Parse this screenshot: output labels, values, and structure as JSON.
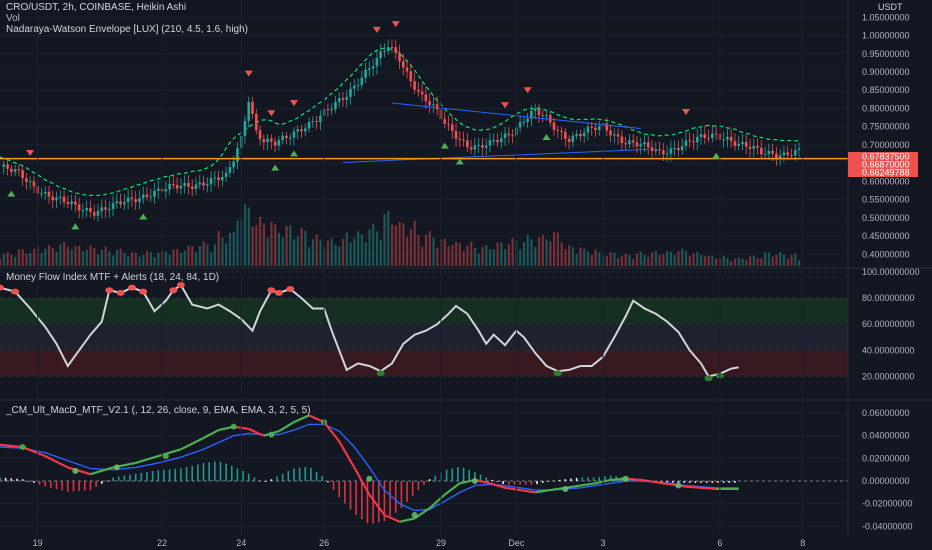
{
  "header": {
    "symbol_line": "CRO/USDT, 2h, COINBASE, Heikin Ashi",
    "vol_label": "Vol",
    "indicator1": "Nadaraya-Watson Envelope [LUX] (210, 4.5, 1.6, high)",
    "currency": "USDT"
  },
  "panels": {
    "mfi_title": "Money Flow Index MTF + Alerts (18, 24, 84, 1D)",
    "macd_title": "_CM_Ult_MacD_MTF_V2.1 (, 12, 26, close, 9, EMA, EMA, 3, 2, 5, 5)"
  },
  "colors": {
    "background": "#131722",
    "up": "#26a69a",
    "down": "#ef5350",
    "envelope": "#00e676",
    "trendline": "#2962ff",
    "support": "#ff9800",
    "mfi_line": "#d1d4dc",
    "macd": "#2962ff",
    "signal_up": "#26a69a",
    "signal_down": "#f23645"
  },
  "chart_data": [
    {
      "type": "candlestick",
      "title": "CRO/USDT, 2h, COINBASE, Heikin Ashi",
      "x_ticks": [
        "19",
        "22",
        "24",
        "26",
        "29",
        "Dec",
        "3",
        "6",
        "8"
      ],
      "y_ticks": [
        "1.05000000",
        "1.00000000",
        "0.95000000",
        "0.90000000",
        "0.85000000",
        "0.80000000",
        "0.75000000",
        "0.70000000",
        "0.65000000",
        "0.60000000",
        "0.55000000",
        "0.50000000",
        "0.45000000",
        "0.40000000"
      ],
      "ylim": [
        0.39,
        1.07
      ],
      "price_labels": [
        {
          "text": "0.67837500",
          "color": "#ef5350"
        },
        {
          "text": "0.66870000",
          "color": "#ef5350"
        },
        {
          "text": "0.66249788",
          "color": "#ef5350"
        }
      ],
      "support_level": 0.6625,
      "close_path": [
        [
          0,
          0.64
        ],
        [
          5,
          0.62
        ],
        [
          10,
          0.58
        ],
        [
          15,
          0.55
        ],
        [
          20,
          0.53
        ],
        [
          25,
          0.52
        ],
        [
          30,
          0.53
        ],
        [
          35,
          0.55
        ],
        [
          40,
          0.57
        ],
        [
          45,
          0.58
        ],
        [
          50,
          0.59
        ],
        [
          55,
          0.6
        ],
        [
          60,
          0.61
        ],
        [
          62,
          0.66
        ],
        [
          64,
          0.72
        ],
        [
          66,
          0.83
        ],
        [
          68,
          0.74
        ],
        [
          70,
          0.71
        ],
        [
          73,
          0.7
        ],
        [
          76,
          0.72
        ],
        [
          80,
          0.75
        ],
        [
          84,
          0.77
        ],
        [
          88,
          0.8
        ],
        [
          92,
          0.84
        ],
        [
          96,
          0.89
        ],
        [
          100,
          0.93
        ],
        [
          103,
          0.97
        ],
        [
          106,
          0.94
        ],
        [
          109,
          0.88
        ],
        [
          112,
          0.83
        ],
        [
          115,
          0.8
        ],
        [
          118,
          0.76
        ],
        [
          121,
          0.73
        ],
        [
          124,
          0.7
        ],
        [
          127,
          0.69
        ],
        [
          130,
          0.7
        ],
        [
          133,
          0.72
        ],
        [
          136,
          0.74
        ],
        [
          139,
          0.77
        ],
        [
          142,
          0.79
        ],
        [
          145,
          0.77
        ],
        [
          148,
          0.74
        ],
        [
          151,
          0.72
        ],
        [
          154,
          0.73
        ],
        [
          157,
          0.74
        ],
        [
          160,
          0.75
        ],
        [
          163,
          0.73
        ],
        [
          166,
          0.71
        ],
        [
          169,
          0.7
        ],
        [
          172,
          0.69
        ],
        [
          175,
          0.68
        ],
        [
          178,
          0.69
        ],
        [
          181,
          0.7
        ],
        [
          184,
          0.71
        ],
        [
          187,
          0.72
        ],
        [
          190,
          0.73
        ],
        [
          193,
          0.72
        ],
        [
          196,
          0.7
        ],
        [
          199,
          0.69
        ],
        [
          202,
          0.68
        ],
        [
          205,
          0.68
        ],
        [
          208,
          0.675
        ],
        [
          211,
          0.678
        ]
      ],
      "volume_profile": [
        0.2,
        0.25,
        0.3,
        0.35,
        0.3,
        0.28,
        0.25,
        0.2,
        0.22,
        0.25,
        0.3,
        0.35,
        0.5,
        0.9,
        0.7,
        0.6,
        0.55,
        0.45,
        0.4,
        0.5,
        0.6,
        0.8,
        0.65,
        0.5,
        0.4,
        0.35,
        0.3,
        0.35,
        0.4,
        0.45,
        0.5,
        0.3,
        0.25,
        0.2,
        0.18,
        0.2,
        0.22,
        0.25,
        0.2,
        0.15,
        0.12,
        0.15,
        0.2,
        0.18,
        0.1
      ],
      "sell_markers_idx": [
        8,
        66,
        72,
        78,
        100,
        105,
        134,
        140,
        182
      ],
      "buy_markers_idx": [
        3,
        20,
        38,
        73,
        78,
        118,
        122,
        145,
        190
      ]
    },
    {
      "type": "line",
      "title": "Money Flow Index MTF + Alerts (18, 24, 84, 1D)",
      "y_ticks": [
        "100.00000000",
        "80.00000000",
        "60.00000000",
        "40.00000000",
        "20.00000000"
      ],
      "ylim": [
        5,
        100
      ],
      "bands": {
        "overbought": [
          60,
          80
        ],
        "oversold": [
          20,
          40
        ]
      },
      "series": [
        {
          "values": [
            [
              0,
              88
            ],
            [
              4,
              85
            ],
            [
              8,
              72
            ],
            [
              12,
              58
            ],
            [
              15,
              45
            ],
            [
              18,
              28
            ],
            [
              21,
              40
            ],
            [
              24,
              52
            ],
            [
              27,
              62
            ],
            [
              29,
              86
            ],
            [
              32,
              84
            ],
            [
              35,
              88
            ],
            [
              38,
              85
            ],
            [
              41,
              70
            ],
            [
              44,
              78
            ],
            [
              46,
              86
            ],
            [
              48,
              90
            ],
            [
              51,
              75
            ],
            [
              55,
              72
            ],
            [
              58,
              75
            ],
            [
              61,
              70
            ],
            [
              64,
              64
            ],
            [
              67,
              55
            ],
            [
              69,
              70
            ],
            [
              72,
              86
            ],
            [
              74,
              84
            ],
            [
              77,
              87
            ],
            [
              80,
              80
            ],
            [
              83,
              72
            ],
            [
              86,
              72
            ],
            [
              88,
              55
            ],
            [
              90,
              40
            ],
            [
              92,
              25
            ],
            [
              95,
              30
            ],
            [
              98,
              28
            ],
            [
              101,
              24
            ],
            [
              104,
              30
            ],
            [
              107,
              45
            ],
            [
              110,
              52
            ],
            [
              113,
              55
            ],
            [
              116,
              60
            ],
            [
              119,
              68
            ],
            [
              121,
              74
            ],
            [
              124,
              68
            ],
            [
              127,
              55
            ],
            [
              129,
              45
            ],
            [
              131,
              52
            ],
            [
              134,
              44
            ],
            [
              137,
              55
            ],
            [
              139,
              50
            ],
            [
              142,
              38
            ],
            [
              145,
              28
            ],
            [
              148,
              24
            ],
            [
              151,
              25
            ],
            [
              154,
              28
            ],
            [
              157,
              28
            ],
            [
              160,
              35
            ],
            [
              163,
              50
            ],
            [
              166,
              66
            ],
            [
              168,
              78
            ],
            [
              171,
              72
            ],
            [
              174,
              68
            ],
            [
              177,
              62
            ],
            [
              180,
              54
            ],
            [
              183,
              40
            ],
            [
              186,
              30
            ],
            [
              188,
              20
            ],
            [
              191,
              22
            ],
            [
              194,
              26
            ],
            [
              196,
              27
            ]
          ]
        }
      ]
    },
    {
      "type": "bar+line",
      "title": "_CM_Ult_MacD_MTF_V2.1 (, 12, 26, close, 9, EMA, EMA, 3, 2, 5, 5)",
      "y_ticks": [
        "0.06000000",
        "0.04000000",
        "0.02000000",
        "0.00000000",
        "-0.02000000",
        "-0.04000000"
      ],
      "ylim": [
        -0.045,
        0.068
      ],
      "series": [
        {
          "values": [
            [
              0,
              0.032
            ],
            [
              6,
              0.03
            ],
            [
              12,
              0.022
            ],
            [
              18,
              0.012
            ],
            [
              24,
              0.006
            ],
            [
              30,
              0.012
            ],
            [
              36,
              0.016
            ],
            [
              42,
              0.022
            ],
            [
              48,
              0.028
            ],
            [
              54,
              0.038
            ],
            [
              58,
              0.045
            ],
            [
              62,
              0.048
            ],
            [
              66,
              0.046
            ],
            [
              70,
              0.04
            ],
            [
              74,
              0.044
            ],
            [
              78,
              0.052
            ],
            [
              82,
              0.058
            ],
            [
              86,
              0.052
            ],
            [
              90,
              0.035
            ],
            [
              94,
              0.012
            ],
            [
              98,
              -0.012
            ],
            [
              102,
              -0.03
            ],
            [
              106,
              -0.036
            ],
            [
              110,
              -0.033
            ],
            [
              114,
              -0.024
            ],
            [
              118,
              -0.012
            ],
            [
              122,
              -0.002
            ],
            [
              126,
              0.001
            ],
            [
              130,
              -0.002
            ],
            [
              134,
              -0.006
            ],
            [
              138,
              -0.008
            ],
            [
              142,
              -0.01
            ],
            [
              146,
              -0.008
            ],
            [
              150,
              -0.006
            ],
            [
              154,
              -0.004
            ],
            [
              158,
              -0.002
            ],
            [
              162,
              0.001
            ],
            [
              166,
              0.002
            ],
            [
              170,
              0.001
            ],
            [
              174,
              -0.001
            ],
            [
              178,
              -0.003
            ],
            [
              182,
              -0.005
            ],
            [
              186,
              -0.006
            ],
            [
              190,
              -0.007
            ],
            [
              196,
              -0.007
            ]
          ]
        },
        {
          "values": [
            [
              0,
              0.03
            ],
            [
              6,
              0.029
            ],
            [
              12,
              0.025
            ],
            [
              18,
              0.018
            ],
            [
              24,
              0.011
            ],
            [
              30,
              0.01
            ],
            [
              36,
              0.012
            ],
            [
              42,
              0.016
            ],
            [
              48,
              0.021
            ],
            [
              54,
              0.028
            ],
            [
              58,
              0.034
            ],
            [
              62,
              0.04
            ],
            [
              66,
              0.042
            ],
            [
              70,
              0.041
            ],
            [
              74,
              0.041
            ],
            [
              78,
              0.045
            ],
            [
              82,
              0.05
            ],
            [
              86,
              0.05
            ],
            [
              90,
              0.044
            ],
            [
              94,
              0.03
            ],
            [
              98,
              0.012
            ],
            [
              102,
              -0.008
            ],
            [
              106,
              -0.02
            ],
            [
              110,
              -0.026
            ],
            [
              114,
              -0.025
            ],
            [
              118,
              -0.018
            ],
            [
              122,
              -0.01
            ],
            [
              126,
              -0.004
            ],
            [
              130,
              -0.003
            ],
            [
              134,
              -0.004
            ],
            [
              138,
              -0.006
            ],
            [
              142,
              -0.008
            ],
            [
              146,
              -0.008
            ],
            [
              150,
              -0.007
            ],
            [
              154,
              -0.006
            ],
            [
              158,
              -0.004
            ],
            [
              162,
              -0.002
            ],
            [
              166,
              0.0
            ],
            [
              170,
              0.0
            ],
            [
              174,
              -0.001
            ],
            [
              178,
              -0.002
            ],
            [
              182,
              -0.004
            ],
            [
              186,
              -0.005
            ],
            [
              190,
              -0.006
            ],
            [
              196,
              -0.006
            ]
          ]
        }
      ]
    }
  ]
}
